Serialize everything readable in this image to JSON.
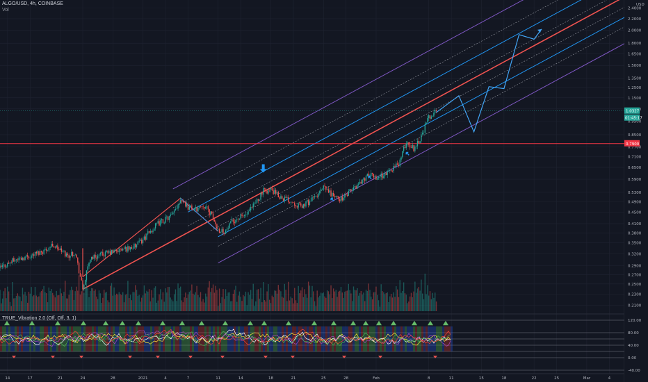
{
  "header": {
    "symbol_line": "ALGO/USD, 4h, COINBASE",
    "volume_label": "Vol",
    "indicator_label": "TRUE_Vibration 2.0 (Off, Off, 3, 1)"
  },
  "price_axis": {
    "currency": "USD",
    "ticks": [
      "2.4000",
      "2.2000",
      "2.0000",
      "1.8000",
      "1.6500",
      "1.5000",
      "1.3500",
      "1.2500",
      "1.1500",
      "1.0500",
      "0.9500",
      "0.8500",
      "0.7700",
      "0.7100",
      "0.6500",
      "0.5900",
      "0.5300",
      "0.4900",
      "0.4500",
      "0.4100",
      "0.3800",
      "0.3500",
      "0.3200",
      "0.2900",
      "0.2700",
      "0.2500",
      "0.2300",
      "0.2100"
    ],
    "last_price_badge": "1.0327",
    "countdown_badge": "01:45:17",
    "level_badge": "0.7900"
  },
  "osc_axis": {
    "ticks": [
      "120.00",
      "80.00",
      "40.00",
      "0.00",
      "-40.00"
    ]
  },
  "time_axis": {
    "ticks": [
      "14",
      "17",
      "21",
      "24",
      "28",
      "2021",
      "4",
      "7",
      "11",
      "14",
      "18",
      "21",
      "25",
      "28",
      "Feb",
      "8",
      "11",
      "15",
      "18",
      "22",
      "25",
      "Mar",
      "4"
    ]
  },
  "chart_data": {
    "type": "candlestick",
    "symbol": "ALGO/USD",
    "timeframe": "4h",
    "exchange": "COINBASE",
    "y_scale": "log",
    "ylim": [
      0.2,
      2.45
    ],
    "x_range": [
      "2020-12-13",
      "2021-03-06"
    ],
    "last_price": 1.0327,
    "horizontal_level": 0.79,
    "price_path": [
      [
        "2020-12-13",
        0.285
      ],
      [
        "2020-12-15",
        0.305
      ],
      [
        "2020-12-17",
        0.315
      ],
      [
        "2020-12-19",
        0.33
      ],
      [
        "2020-12-20",
        0.345
      ],
      [
        "2020-12-22",
        0.315
      ],
      [
        "2020-12-23",
        0.325
      ],
      [
        "2020-12-24",
        0.24
      ],
      [
        "2020-12-25",
        0.31
      ],
      [
        "2020-12-27",
        0.32
      ],
      [
        "2020-12-29",
        0.33
      ],
      [
        "2020-12-31",
        0.34
      ],
      [
        "2021-01-01",
        0.36
      ],
      [
        "2021-01-03",
        0.41
      ],
      [
        "2021-01-05",
        0.44
      ],
      [
        "2021-01-06",
        0.505
      ],
      [
        "2021-01-07",
        0.47
      ],
      [
        "2021-01-08",
        0.46
      ],
      [
        "2021-01-09",
        0.48
      ],
      [
        "2021-01-10",
        0.445
      ],
      [
        "2021-01-11",
        0.39
      ],
      [
        "2021-01-12",
        0.385
      ],
      [
        "2021-01-13",
        0.42
      ],
      [
        "2021-01-15",
        0.445
      ],
      [
        "2021-01-17",
        0.535
      ],
      [
        "2021-01-18",
        0.54
      ],
      [
        "2021-01-19",
        0.515
      ],
      [
        "2021-01-21",
        0.49
      ],
      [
        "2021-01-22",
        0.47
      ],
      [
        "2021-01-24",
        0.51
      ],
      [
        "2021-01-25",
        0.55
      ],
      [
        "2021-01-27",
        0.5
      ],
      [
        "2021-01-28",
        0.515
      ],
      [
        "2021-01-30",
        0.58
      ],
      [
        "2021-01-31",
        0.61
      ],
      [
        "2021-02-01",
        0.6
      ],
      [
        "2021-02-02",
        0.61
      ],
      [
        "2021-02-04",
        0.67
      ],
      [
        "2021-02-05",
        0.8
      ],
      [
        "2021-02-06",
        0.76
      ],
      [
        "2021-02-07",
        0.84
      ],
      [
        "2021-02-08",
        0.98
      ],
      [
        "2021-02-09",
        1.0327
      ]
    ],
    "projection_path": [
      [
        "2021-02-09",
        1.02
      ],
      [
        "2021-02-12",
        1.17
      ],
      [
        "2021-02-14",
        0.87
      ],
      [
        "2021-02-16",
        1.26
      ],
      [
        "2021-02-18",
        1.24
      ],
      [
        "2021-02-20",
        1.93
      ],
      [
        "2021-02-22",
        1.86
      ],
      [
        "2021-02-23",
        2.02
      ]
    ],
    "osc_levels": [
      120,
      80,
      60,
      40,
      20,
      0,
      -40
    ]
  }
}
